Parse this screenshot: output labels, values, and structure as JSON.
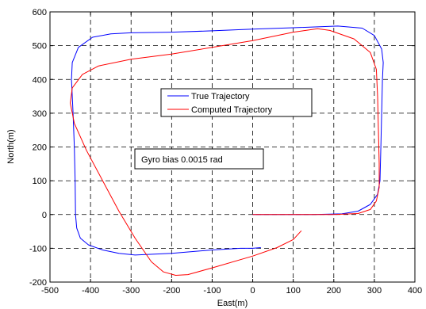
{
  "chart_data": {
    "type": "line",
    "xlabel": "East(m)",
    "ylabel": "North(m)",
    "xlim": [
      -500,
      400
    ],
    "ylim": [
      -200,
      600
    ],
    "xticks": [
      "-500",
      "-400",
      "-300",
      "-200",
      "-100",
      "0",
      "100",
      "200",
      "300",
      "400"
    ],
    "yticks": [
      "-200",
      "-100",
      "0",
      "100",
      "200",
      "300",
      "400",
      "500",
      "600"
    ],
    "grid": true,
    "legend_position": "center",
    "annotation": "Gyro bias 0.0015 rad",
    "series": [
      {
        "name": "True Trajectory",
        "color": "#0000ff",
        "points": [
          [
            0,
            0
          ],
          [
            150,
            0
          ],
          [
            220,
            2
          ],
          [
            260,
            10
          ],
          [
            290,
            30
          ],
          [
            308,
            60
          ],
          [
            314,
            100
          ],
          [
            316,
            200
          ],
          [
            318,
            300
          ],
          [
            320,
            400
          ],
          [
            322,
            450
          ],
          [
            318,
            490
          ],
          [
            300,
            530
          ],
          [
            270,
            552
          ],
          [
            210,
            558
          ],
          [
            100,
            553
          ],
          [
            0,
            549
          ],
          [
            -100,
            544
          ],
          [
            -200,
            540
          ],
          [
            -300,
            538
          ],
          [
            -350,
            535
          ],
          [
            -395,
            525
          ],
          [
            -430,
            495
          ],
          [
            -445,
            450
          ],
          [
            -447,
            400
          ],
          [
            -443,
            300
          ],
          [
            -440,
            200
          ],
          [
            -438,
            100
          ],
          [
            -437,
            0
          ],
          [
            -434,
            -40
          ],
          [
            -425,
            -70
          ],
          [
            -405,
            -90
          ],
          [
            -370,
            -105
          ],
          [
            -330,
            -115
          ],
          [
            -290,
            -120
          ],
          [
            -200,
            -115
          ],
          [
            -100,
            -105
          ],
          [
            -30,
            -100
          ],
          [
            0,
            -100
          ],
          [
            20,
            -98
          ]
        ]
      },
      {
        "name": "Computed Trajectory",
        "color": "#ff0000",
        "points": [
          [
            0,
            0
          ],
          [
            100,
            0
          ],
          [
            200,
            0
          ],
          [
            260,
            3
          ],
          [
            290,
            15
          ],
          [
            305,
            40
          ],
          [
            312,
            80
          ],
          [
            312,
            150
          ],
          [
            310,
            250
          ],
          [
            308,
            350
          ],
          [
            305,
            430
          ],
          [
            290,
            480
          ],
          [
            250,
            520
          ],
          [
            190,
            545
          ],
          [
            160,
            550
          ],
          [
            100,
            540
          ],
          [
            0,
            515
          ],
          [
            -100,
            495
          ],
          [
            -200,
            475
          ],
          [
            -300,
            460
          ],
          [
            -380,
            440
          ],
          [
            -420,
            415
          ],
          [
            -445,
            375
          ],
          [
            -450,
            330
          ],
          [
            -440,
            270
          ],
          [
            -410,
            190
          ],
          [
            -370,
            100
          ],
          [
            -330,
            10
          ],
          [
            -290,
            -70
          ],
          [
            -250,
            -140
          ],
          [
            -220,
            -170
          ],
          [
            -190,
            -180
          ],
          [
            -160,
            -178
          ],
          [
            -100,
            -158
          ],
          [
            0,
            -123
          ],
          [
            60,
            -98
          ],
          [
            100,
            -74
          ],
          [
            120,
            -48
          ]
        ]
      }
    ]
  }
}
